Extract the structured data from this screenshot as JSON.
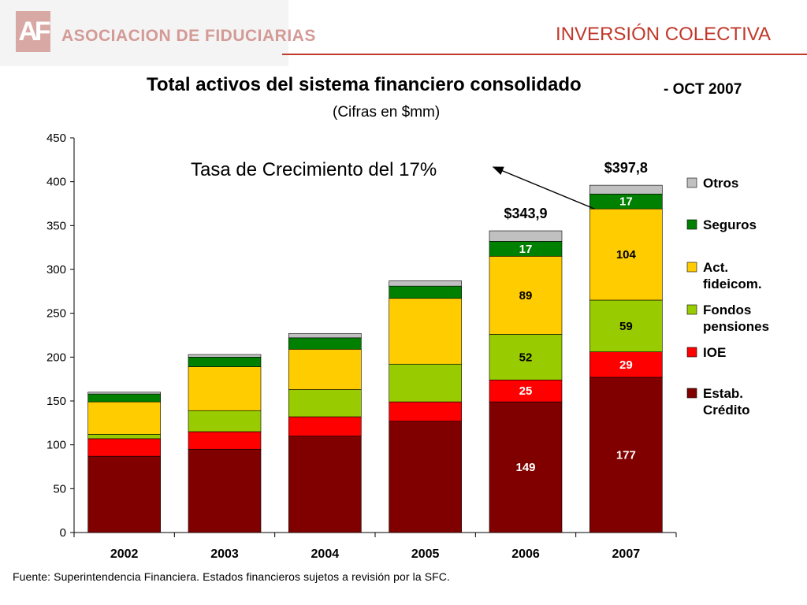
{
  "header": {
    "logo_mark": "AF",
    "logo_text": "ASOCIACION DE FIDUCIARIAS",
    "section_title": "INVERSIÓN COLECTIVA"
  },
  "footer": {
    "source": "Fuente: Superintendencia Financiera. Estados financieros sujetos a revisión por la SFC."
  },
  "chart_data": {
    "type": "bar",
    "stacked": true,
    "title": "Total activos del sistema financiero consolidado",
    "title_suffix": "- OCT 2007",
    "subtitle": "(Cifras en $mm)",
    "categories": [
      "2002",
      "2003",
      "2004",
      "2005",
      "2006",
      "2007"
    ],
    "ylim": [
      0,
      450
    ],
    "yticks": [
      "0",
      "50",
      "100",
      "150",
      "200",
      "250",
      "300",
      "350",
      "400",
      "450"
    ],
    "grid": false,
    "legend_position": "right",
    "series": [
      {
        "name": "Estab. Crédito",
        "color": "#800000",
        "values": [
          87,
          95,
          110,
          127,
          149,
          177
        ],
        "labels": [
          "",
          "",
          "",
          "",
          "149",
          "177"
        ]
      },
      {
        "name": "IOE",
        "color": "#ff0000",
        "values": [
          20,
          20,
          22,
          22,
          25,
          29
        ],
        "labels": [
          "",
          "",
          "",
          "",
          "25",
          "29"
        ]
      },
      {
        "name": "Fondos pensiones",
        "color": "#99cc00",
        "values": [
          5,
          24,
          31,
          43,
          52,
          59
        ],
        "labels": [
          "",
          "",
          "",
          "",
          "52",
          "59"
        ]
      },
      {
        "name": "Act. fideicom.",
        "color": "#ffcc00",
        "values": [
          37,
          50,
          46,
          75,
          89,
          104
        ],
        "labels": [
          "",
          "",
          "",
          "",
          "89",
          "104"
        ]
      },
      {
        "name": "Seguros",
        "color": "#008000",
        "values": [
          9,
          11,
          13,
          14,
          17,
          17
        ],
        "labels": [
          "",
          "",
          "",
          "",
          "17",
          "17"
        ]
      },
      {
        "name": "Otros",
        "color": "#c0c0c0",
        "values": [
          2,
          3,
          5,
          6,
          12,
          10
        ],
        "labels": [
          "",
          "",
          "",
          "",
          "",
          ""
        ]
      }
    ],
    "totals": [
      {
        "category": "2006",
        "label": "$343,9"
      },
      {
        "category": "2007",
        "label": "$397,8"
      }
    ],
    "annotation": {
      "text": "Tasa de Crecimiento del 17%"
    }
  }
}
